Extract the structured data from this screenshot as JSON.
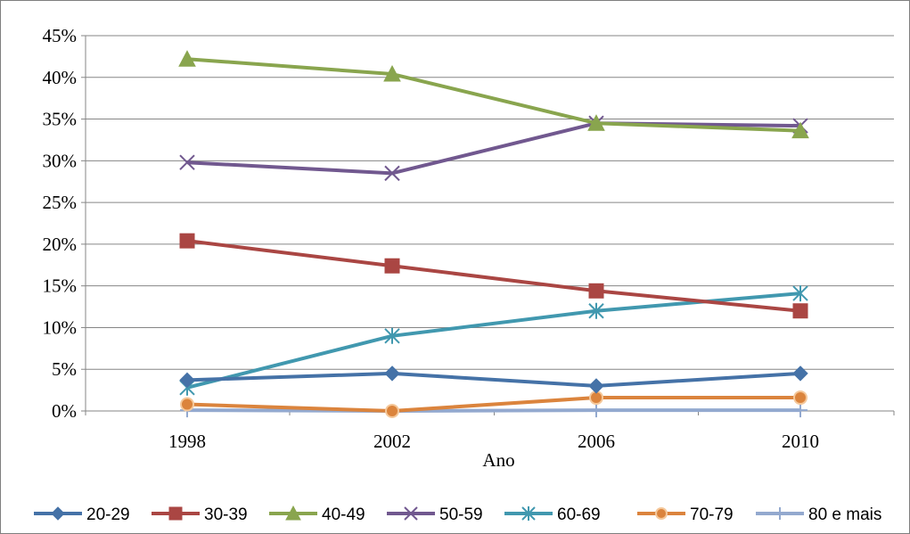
{
  "chart_data": {
    "type": "line",
    "xlabel": "Ano",
    "ylabel": "",
    "categories": [
      "1998",
      "2002",
      "2006",
      "2010"
    ],
    "y_ticks": [
      "0%",
      "5%",
      "10%",
      "15%",
      "20%",
      "25%",
      "30%",
      "35%",
      "40%",
      "45%"
    ],
    "ylim": [
      0,
      45
    ],
    "y_unit": "%",
    "grid": "horizontal",
    "legend_position": "bottom",
    "series": [
      {
        "name": "20-29",
        "values": [
          3.7,
          4.5,
          3.0,
          4.5
        ],
        "color": "#4572a7",
        "marker": "diamond"
      },
      {
        "name": "30-39",
        "values": [
          20.4,
          17.4,
          14.4,
          12.0
        ],
        "color": "#aa4643",
        "marker": "square"
      },
      {
        "name": "40-49",
        "values": [
          42.2,
          40.4,
          34.5,
          33.6
        ],
        "color": "#89a54e",
        "marker": "triangle"
      },
      {
        "name": "50-59",
        "values": [
          29.8,
          28.5,
          34.5,
          34.2
        ],
        "color": "#71588f",
        "marker": "x"
      },
      {
        "name": "60-69",
        "values": [
          2.8,
          9.0,
          12.0,
          14.1
        ],
        "color": "#4198af",
        "marker": "star"
      },
      {
        "name": "70-79",
        "values": [
          0.8,
          0.0,
          1.6,
          1.6
        ],
        "color": "#db843d",
        "marker": "circle"
      },
      {
        "name": "80 e mais",
        "values": [
          0.1,
          0.0,
          0.1,
          0.1
        ],
        "color": "#93a9cf",
        "marker": "plus"
      }
    ]
  }
}
